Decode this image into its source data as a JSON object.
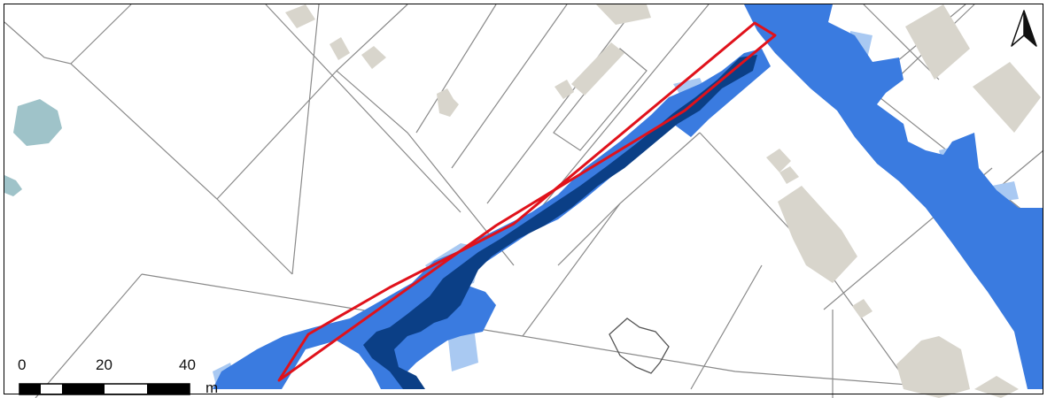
{
  "map": {
    "features": {
      "parcel_lines": "cadastral-parcel-boundaries",
      "buildings": "building-footprints",
      "water_bodies": "ponds",
      "flood_depth_classes": [
        "shallow",
        "medium",
        "deep"
      ],
      "highlight": "study-area-polygon"
    },
    "colors": {
      "parcel_line": "#8a8a8a",
      "building": "#d8d5cc",
      "building_outline_only": "#555555",
      "pond": "#9fc3c9",
      "flood_shallow": "#a9c9f2",
      "flood_medium": "#3a7be0",
      "flood_deep": "#0b3f86",
      "highlight": "#e0121b"
    }
  },
  "scale_bar": {
    "ticks": [
      "0",
      "20",
      "40"
    ],
    "unit": "m"
  },
  "north_arrow": {
    "icon": "north-arrow-icon"
  }
}
